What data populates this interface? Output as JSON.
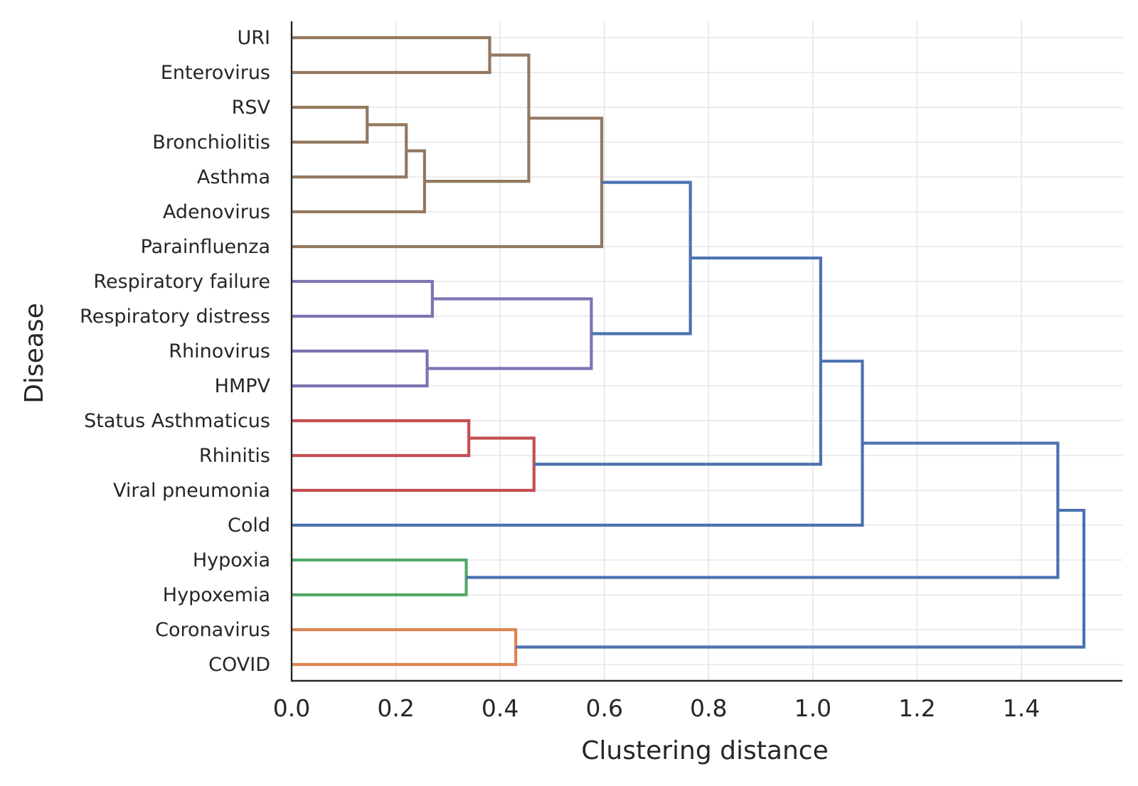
{
  "chart_data": {
    "type": "dendrogram",
    "orientation": "horizontal",
    "xlabel": "Clustering distance",
    "ylabel": "Disease",
    "xlim": [
      0,
      1.6
    ],
    "xticks": [
      "0.0",
      "0.2",
      "0.4",
      "0.6",
      "0.8",
      "1.0",
      "1.2",
      "1.4"
    ],
    "xtick_values": [
      0,
      0.2,
      0.4,
      0.6,
      0.8,
      1.0,
      1.2,
      1.4
    ],
    "grid": true,
    "leaves": [
      "URI",
      "Enterovirus",
      "RSV",
      "Bronchiolitis",
      "Asthma",
      "Adenovirus",
      "Parainfluenza",
      "Respiratory failure",
      "Respiratory distress",
      "Rhinovirus",
      "HMPV",
      "Status Asthmaticus",
      "Rhinitis",
      "Viral pneumonia",
      "Cold",
      "Hypoxia",
      "Hypoxemia",
      "Coronavirus",
      "COVID"
    ],
    "colors": {
      "brown": "#937860",
      "purple": "#8172b3",
      "red": "#c44e52",
      "green": "#55a868",
      "orange": "#dd8452",
      "blue": "#4c72b0"
    },
    "merges": [
      {
        "id": "a",
        "left": "RSV",
        "right": "Bronchiolitis",
        "distance": 0.145,
        "color": "brown"
      },
      {
        "id": "b",
        "left": "a",
        "right": "Asthma",
        "distance": 0.22,
        "color": "brown"
      },
      {
        "id": "c",
        "left": "b",
        "right": "Adenovirus",
        "distance": 0.255,
        "color": "brown"
      },
      {
        "id": "d",
        "left": "URI",
        "right": "Enterovirus",
        "distance": 0.38,
        "color": "brown"
      },
      {
        "id": "e",
        "left": "d",
        "right": "c",
        "distance": 0.455,
        "color": "brown"
      },
      {
        "id": "f",
        "left": "e",
        "right": "Parainfluenza",
        "distance": 0.595,
        "color": "brown"
      },
      {
        "id": "g",
        "left": "Respiratory failure",
        "right": "Respiratory distress",
        "distance": 0.27,
        "color": "purple"
      },
      {
        "id": "h",
        "left": "Rhinovirus",
        "right": "HMPV",
        "distance": 0.26,
        "color": "purple"
      },
      {
        "id": "i",
        "left": "g",
        "right": "h",
        "distance": 0.575,
        "color": "purple"
      },
      {
        "id": "j",
        "left": "f",
        "right": "i",
        "distance": 0.765,
        "color": "blue"
      },
      {
        "id": "k",
        "left": "Status Asthmaticus",
        "right": "Rhinitis",
        "distance": 0.34,
        "color": "red"
      },
      {
        "id": "l",
        "left": "k",
        "right": "Viral pneumonia",
        "distance": 0.465,
        "color": "red"
      },
      {
        "id": "m",
        "left": "j",
        "right": "l",
        "distance": 1.015,
        "color": "blue"
      },
      {
        "id": "n",
        "left": "m",
        "right": "Cold",
        "distance": 1.095,
        "color": "blue"
      },
      {
        "id": "o",
        "left": "Hypoxia",
        "right": "Hypoxemia",
        "distance": 0.335,
        "color": "green"
      },
      {
        "id": "p",
        "left": "n",
        "right": "o",
        "distance": 1.47,
        "color": "blue"
      },
      {
        "id": "q",
        "left": "Coronavirus",
        "right": "COVID",
        "distance": 0.43,
        "color": "orange"
      },
      {
        "id": "r",
        "left": "p",
        "right": "q",
        "distance": 1.52,
        "color": "blue"
      }
    ]
  }
}
